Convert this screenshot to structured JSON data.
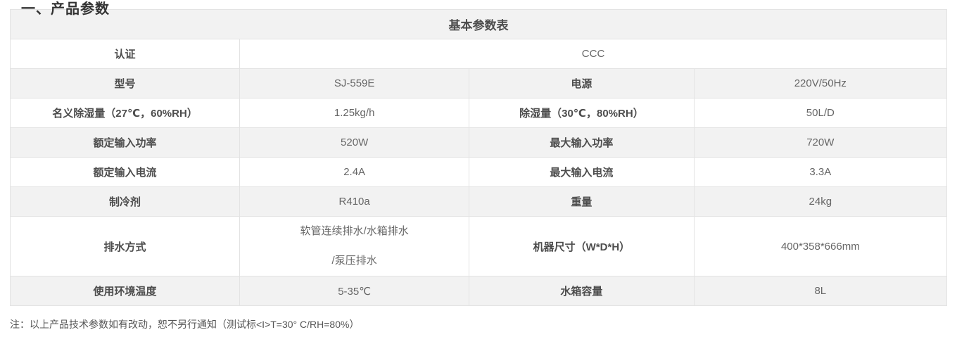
{
  "page": {
    "partial_heading": "一、产品参数",
    "note": "注：以上产品技术参数如有改动，恕不另行通知（测试标<I>T=30° C/RH=80%）"
  },
  "table": {
    "title": "基本参数表",
    "rows": [
      {
        "label1": "认证",
        "value1": "CCC",
        "span": true
      },
      {
        "label1": "型号",
        "value1": "SJ-559E",
        "label2": "电源",
        "value2": "220V/50Hz"
      },
      {
        "label1": "名义除湿量（27℃，60%RH）",
        "value1": "1.25kg/h",
        "label2": "除湿量（30℃，80%RH）",
        "value2": "50L/D"
      },
      {
        "label1": "额定输入功率",
        "value1": "520W",
        "label2": "最大输入功率",
        "value2": "720W"
      },
      {
        "label1": "额定输入电流",
        "value1": "2.4A",
        "label2": "最大输入电流",
        "value2": "3.3A"
      },
      {
        "label1": "制冷剂",
        "value1": "R410a",
        "label2": "重量",
        "value2": "24kg"
      },
      {
        "label1": "排水方式",
        "value1": [
          "软管连续排水/水箱排水",
          "/泵压排水"
        ],
        "label2": "机器尺寸（W*D*H）",
        "value2": "400*358*666mm",
        "tall": true
      },
      {
        "label1": "使用环境温度",
        "value1": "5-35℃",
        "label2": "水箱容量",
        "value2": "8L"
      }
    ]
  },
  "colors": {
    "row_shade": "#f2f2f2",
    "border": "#e3e3e3",
    "label_text": "#4d4d4d",
    "value_text": "#666666"
  }
}
